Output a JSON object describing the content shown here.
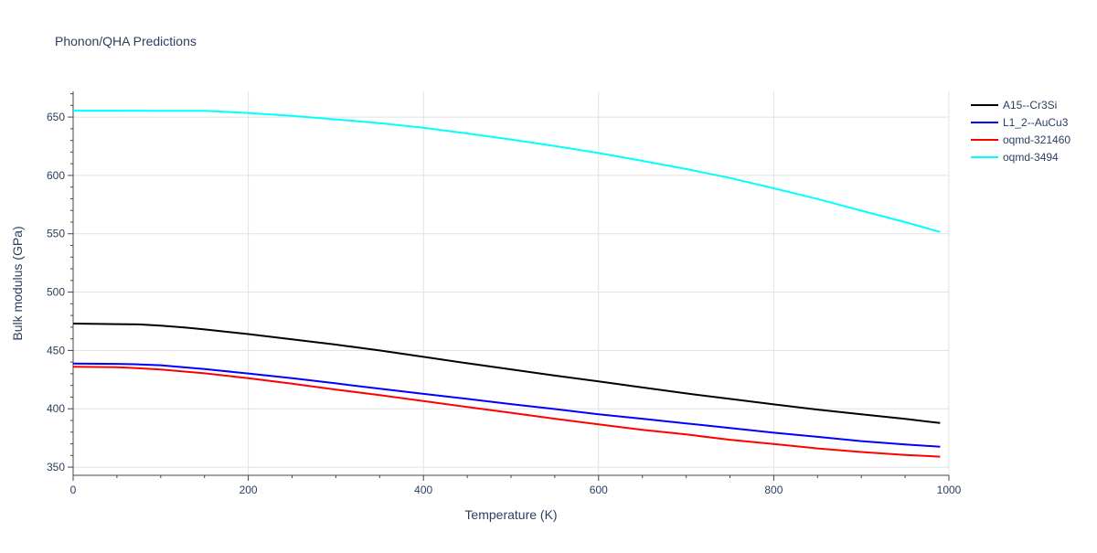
{
  "chart_data": {
    "type": "line",
    "title": "Phonon/QHA Predictions",
    "xlabel": "Temperature (K)",
    "ylabel": "Bulk modulus (GPa)",
    "xlim": [
      0,
      1000
    ],
    "ylim": [
      343,
      672
    ],
    "x_ticks": [
      0,
      200,
      400,
      600,
      800,
      1000
    ],
    "y_ticks": [
      350,
      400,
      450,
      500,
      550,
      600,
      650
    ],
    "grid": true,
    "legend_position": "top-right",
    "series": [
      {
        "name": "A15--Cr3Si",
        "color": "#000000",
        "x": [
          0,
          50,
          75,
          100,
          130,
          150,
          200,
          250,
          300,
          350,
          400,
          450,
          500,
          550,
          600,
          650,
          700,
          750,
          800,
          850,
          900,
          950,
          990
        ],
        "y": [
          473,
          472.6,
          472.3,
          471.2,
          469.5,
          468,
          464,
          459.5,
          455,
          450,
          444.5,
          439,
          433.8,
          428.5,
          423.5,
          418.3,
          413.2,
          408.5,
          403.8,
          399.3,
          395.3,
          391.3,
          387.8
        ]
      },
      {
        "name": "L1_2--AuCu3",
        "color": "#0000ff",
        "x": [
          0,
          50,
          70,
          100,
          150,
          200,
          250,
          300,
          350,
          400,
          450,
          500,
          550,
          600,
          650,
          700,
          750,
          800,
          850,
          900,
          950,
          990
        ],
        "y": [
          438.8,
          438.5,
          438.2,
          437.3,
          434,
          430.3,
          426.2,
          421.8,
          417.2,
          412.8,
          408.5,
          404,
          399.8,
          395.3,
          391.5,
          387.5,
          383.5,
          379.5,
          376,
          372.3,
          369.5,
          367.5
        ]
      },
      {
        "name": "oqmd-321460",
        "color": "#ff0000",
        "x": [
          0,
          50,
          70,
          100,
          150,
          200,
          250,
          300,
          350,
          400,
          450,
          500,
          550,
          600,
          650,
          700,
          750,
          800,
          850,
          900,
          950,
          990
        ],
        "y": [
          436,
          435.6,
          435,
          433.7,
          430.4,
          426.2,
          421.5,
          416.5,
          411.7,
          406.6,
          401.5,
          396.6,
          391.5,
          386.6,
          382,
          378,
          373.5,
          369.8,
          366,
          363,
          360.5,
          359
        ]
      },
      {
        "name": "oqmd-3494",
        "color": "#00ffff",
        "x": [
          0,
          50,
          100,
          150,
          200,
          250,
          300,
          350,
          400,
          450,
          500,
          550,
          600,
          650,
          700,
          750,
          800,
          850,
          900,
          950,
          990
        ],
        "y": [
          655.5,
          655.5,
          655.4,
          655.3,
          653.5,
          651,
          648,
          644.8,
          640.8,
          636,
          630.8,
          625.2,
          619.2,
          612.5,
          605.5,
          597.8,
          589,
          579.8,
          569.8,
          560,
          551.5
        ]
      }
    ]
  }
}
